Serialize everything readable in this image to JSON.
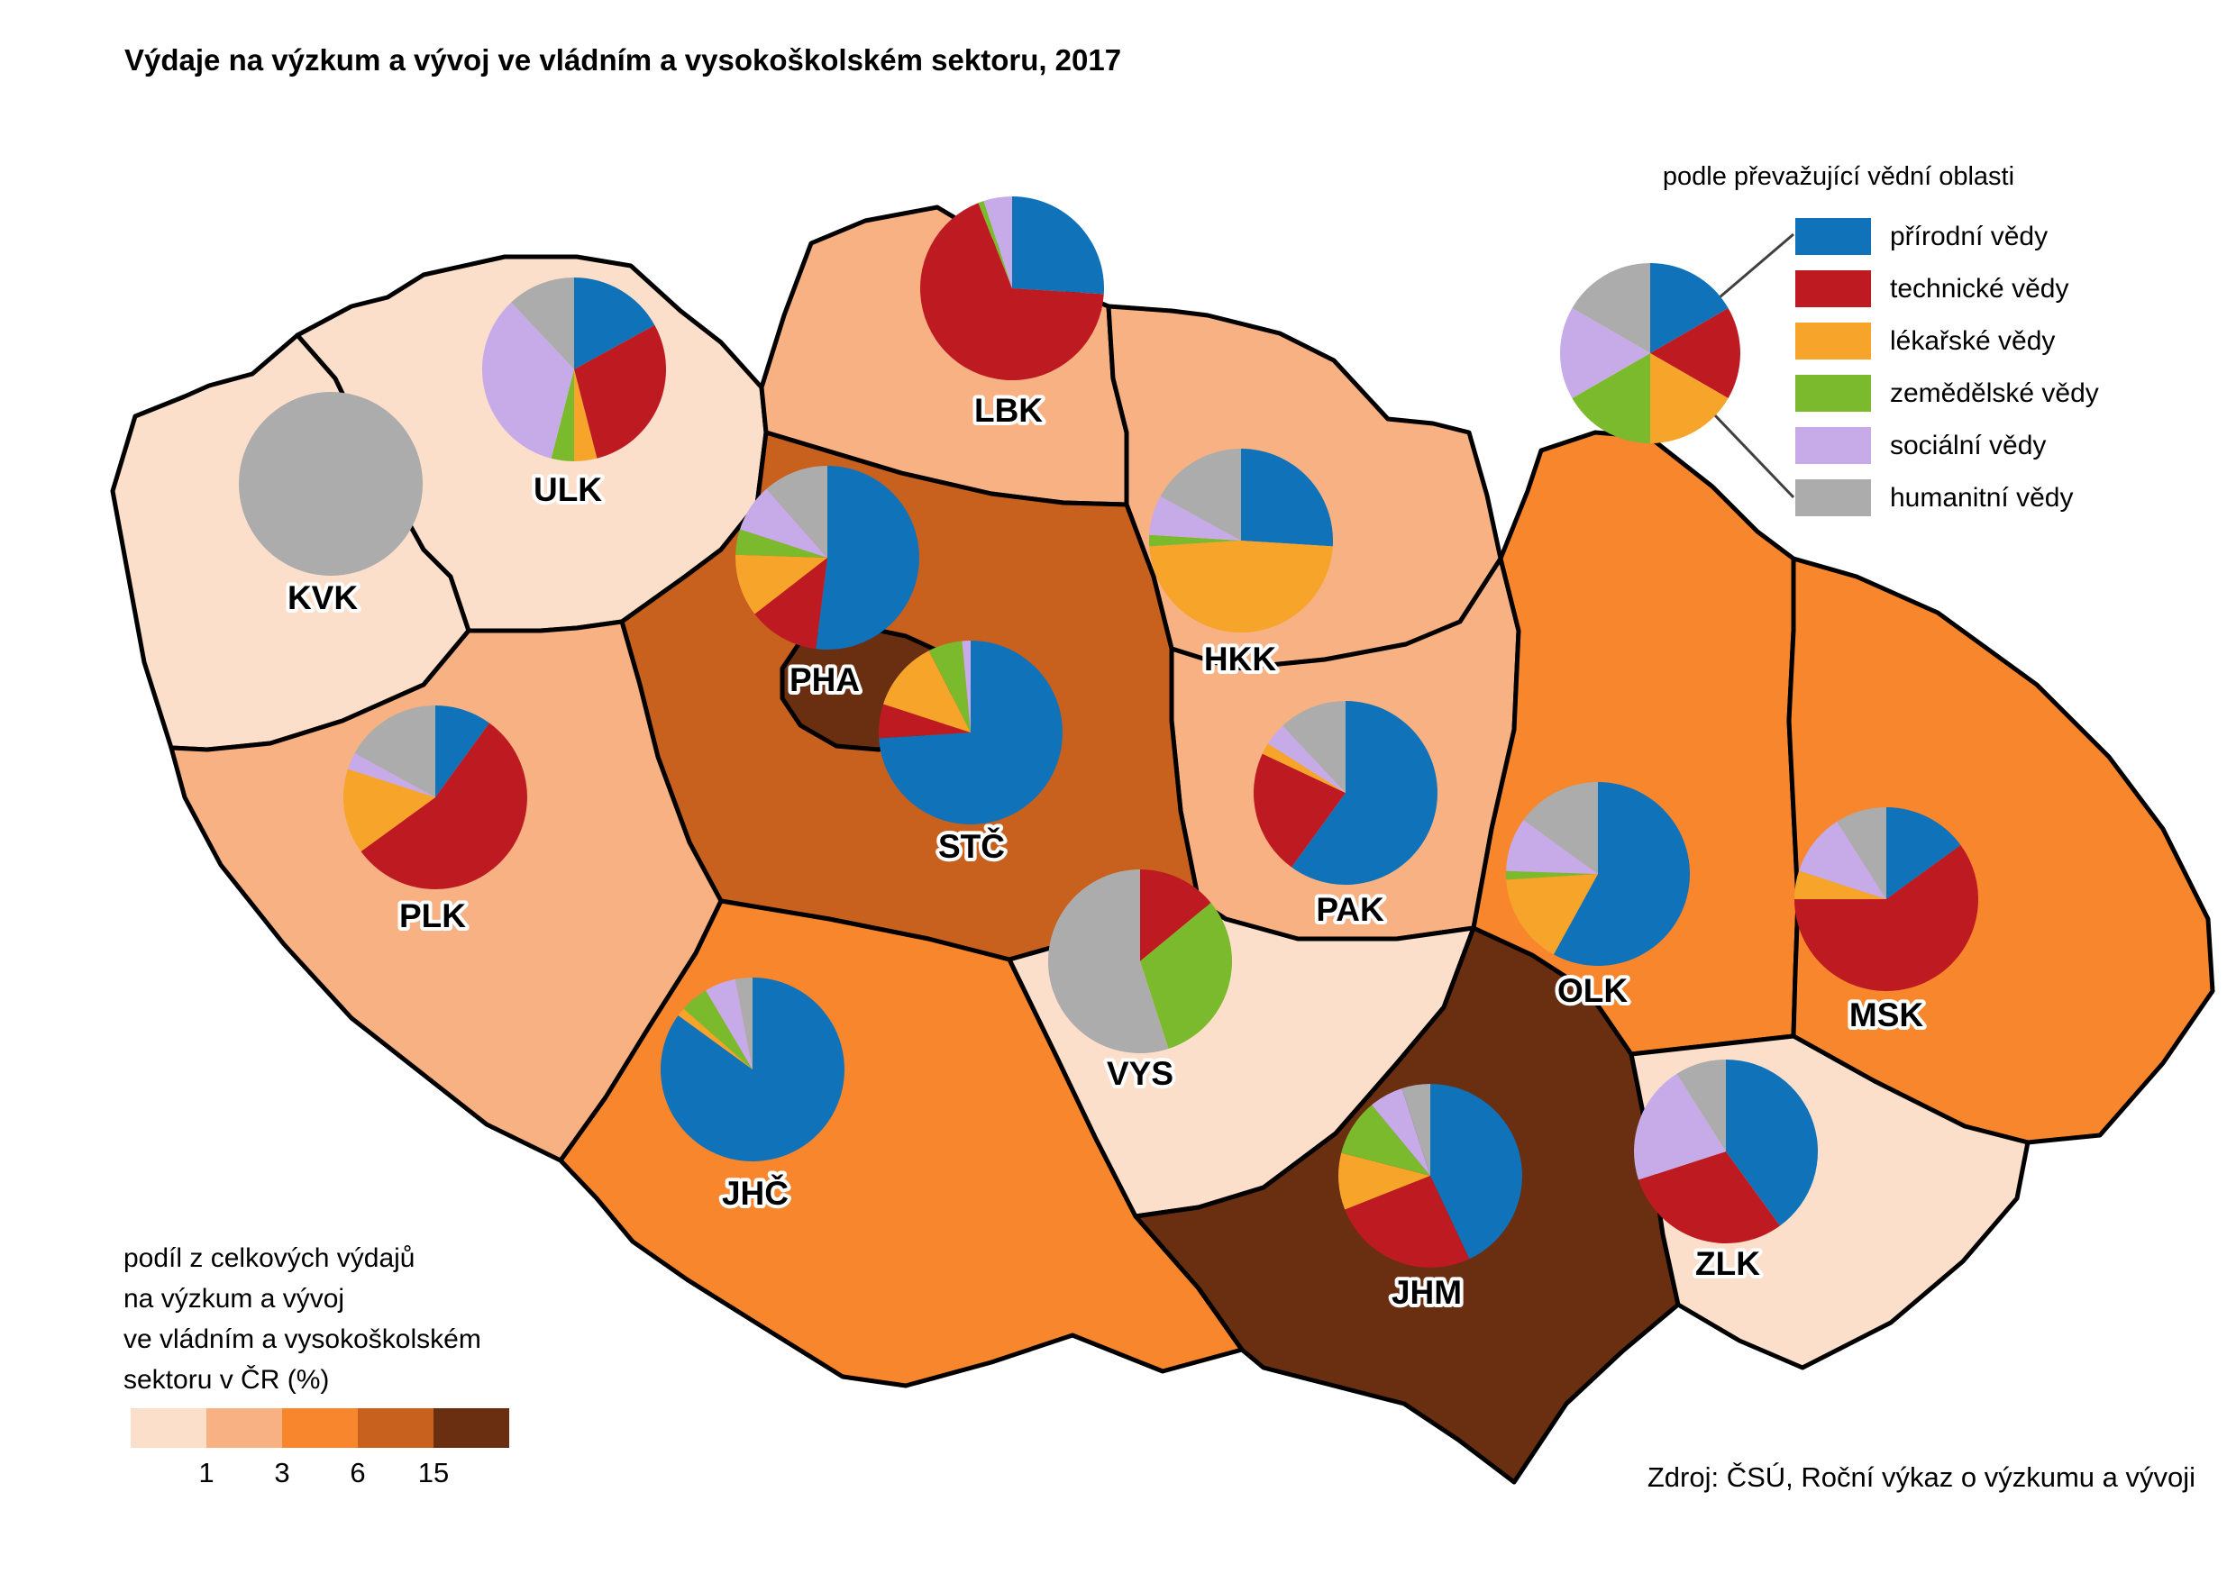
{
  "title": "Výdaje na výzkum a vývoj ve vládním a vysokoškolském sektoru, 2017",
  "source": "Zdroj: ČSÚ, Roční výkaz o výzkumu a vývoji",
  "legend": {
    "title": "podle převažující vědní oblasti",
    "fields": [
      {
        "id": "prirodni",
        "label": "přírodní vědy",
        "color": "#1072B9"
      },
      {
        "id": "technicke",
        "label": "technické vědy",
        "color": "#BE1A22"
      },
      {
        "id": "lekarske",
        "label": "lékařské vědy",
        "color": "#F6A42A"
      },
      {
        "id": "zemedelske",
        "label": "zemědělské vědy",
        "color": "#7BBA2D"
      },
      {
        "id": "socialni",
        "label": "sociální vědy",
        "color": "#C7ABE9"
      },
      {
        "id": "humanitni",
        "label": "humanitní vědy",
        "color": "#ACACAC"
      }
    ]
  },
  "scale_legend": {
    "title_lines": [
      "podíl z celkových výdajů",
      "na výzkum a vývoj",
      "ve vládním a vysokoškolském",
      "sektoru v ČR (%)"
    ],
    "bins": [
      {
        "range": "<1",
        "color": "#FCDFCB"
      },
      {
        "range": "1–3",
        "color": "#F7B183"
      },
      {
        "range": "3–6",
        "color": "#F8862D"
      },
      {
        "range": "6–15",
        "color": "#C8601E"
      },
      {
        "range": ">15",
        "color": "#6A2E10"
      }
    ],
    "ticks": [
      "1",
      "3",
      "6",
      "15"
    ]
  },
  "chart_data": {
    "type": "choropleth-map-with-pies",
    "unit": "% podle vědní oblasti",
    "choropleth_thresholds": [
      1,
      3,
      6,
      15
    ],
    "regions": [
      {
        "code": "KVK",
        "share_class": 0,
        "pie": {
          "humanitni": 100
        }
      },
      {
        "code": "ULK",
        "share_class": 0,
        "pie": {
          "prirodni": 17,
          "technicke": 29,
          "lekarske": 4,
          "zemedelske": 4,
          "socialni": 34,
          "humanitni": 12
        }
      },
      {
        "code": "LBK",
        "share_class": 1,
        "pie": {
          "prirodni": 26,
          "technicke": 68,
          "zemedelske": 1,
          "socialni": 5
        }
      },
      {
        "code": "HKK",
        "share_class": 1,
        "pie": {
          "prirodni": 26,
          "lekarske": 48,
          "zemedelske": 2,
          "socialni": 7,
          "humanitni": 17
        }
      },
      {
        "code": "PAK",
        "share_class": 1,
        "pie": {
          "prirodni": 60,
          "technicke": 22,
          "lekarske": 2,
          "socialni": 4,
          "humanitni": 12
        }
      },
      {
        "code": "STČ",
        "share_class": 3,
        "pie": {
          "prirodni": 74,
          "technicke": 6,
          "lekarske": 12.5,
          "zemedelske": 6,
          "socialni": 1.5
        }
      },
      {
        "code": "PLK",
        "share_class": 1,
        "pie": {
          "prirodni": 10,
          "technicke": 55,
          "lekarske": 15,
          "socialni": 3,
          "humanitni": 17
        }
      },
      {
        "code": "JHČ",
        "share_class": 2,
        "pie": {
          "prirodni": 85,
          "lekarske": 1.5,
          "zemedelske": 5,
          "socialni": 5.5,
          "humanitni": 3
        }
      },
      {
        "code": "VYS",
        "share_class": 0,
        "pie": {
          "technicke": 14,
          "zemedelske": 31,
          "humanitni": 55
        }
      },
      {
        "code": "JHM",
        "share_class": 4,
        "pie": {
          "prirodni": 43,
          "technicke": 26,
          "lekarske": 10,
          "zemedelske": 10,
          "socialni": 6,
          "humanitni": 5
        }
      },
      {
        "code": "OLK",
        "share_class": 2,
        "pie": {
          "prirodni": 58,
          "lekarske": 16,
          "zemedelske": 1.5,
          "socialni": 9.5,
          "humanitni": 15
        }
      },
      {
        "code": "MSK",
        "share_class": 2,
        "pie": {
          "prirodni": 15,
          "technicke": 60,
          "lekarske": 5,
          "socialni": 11,
          "humanitni": 9
        }
      },
      {
        "code": "ZLK",
        "share_class": 0,
        "pie": {
          "prirodni": 40,
          "technicke": 30,
          "socialni": 21,
          "humanitni": 9
        }
      },
      {
        "code": "PHA",
        "share_class": 4,
        "pie": {
          "prirodni": 52,
          "technicke": 12.5,
          "lekarske": 11,
          "zemedelske": 4.5,
          "socialni": 8.5,
          "humanitni": 11.5
        }
      }
    ]
  }
}
